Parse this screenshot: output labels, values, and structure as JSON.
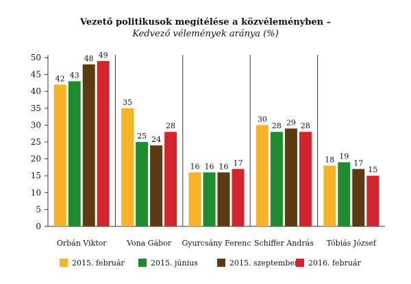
{
  "chart_data": {
    "type": "bar",
    "title": "Vezető politikusok megítélése a közvéleményben –",
    "subtitle": "Kedvező vélemények aránya (%)",
    "categories": [
      "Orbán Viktor",
      "Vona Gábor",
      "Gyurcsány Ferenc",
      "Schiffer András",
      "Tóbiás József"
    ],
    "series": [
      {
        "name": "2015. február",
        "color": "#F5B325",
        "values": [
          42,
          35,
          16,
          30,
          18
        ]
      },
      {
        "name": "2015. június",
        "color": "#1E8B2E",
        "values": [
          43,
          25,
          16,
          28,
          19
        ]
      },
      {
        "name": "2015. szeptember",
        "color": "#5C3A12",
        "values": [
          48,
          24,
          16,
          29,
          17
        ]
      },
      {
        "name": "2016. február",
        "color": "#D4242E",
        "values": [
          49,
          28,
          17,
          28,
          15
        ]
      }
    ],
    "ylim": [
      0,
      50
    ],
    "yticks": [
      0,
      5,
      10,
      15,
      20,
      25,
      30,
      35,
      40,
      45,
      50
    ],
    "grid": false,
    "legend": "bottom"
  }
}
